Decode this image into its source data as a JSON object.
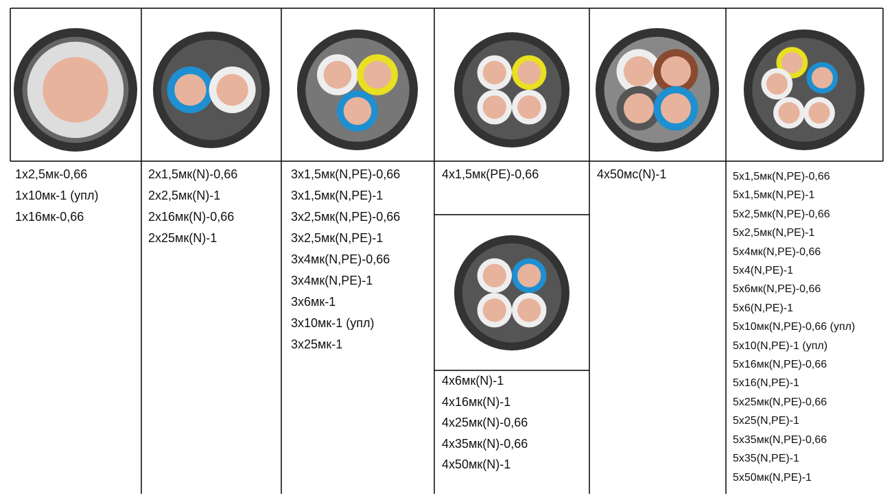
{
  "columns": [
    {
      "lines": [
        "1х2,5мк-0,66",
        "1х10мк-1 (упл)",
        "1х16мк-0,66"
      ]
    },
    {
      "lines": [
        "2х1,5мк(N)-0,66",
        "2х2,5мк(N)-1",
        "2х16мк(N)-0,66",
        "2х25мк(N)-1"
      ]
    },
    {
      "lines": [
        "3х1,5мк(N,PE)-0,66",
        "3х1,5мк(N,PE)-1",
        "3х2,5мк(N,PE)-0,66",
        "3х2,5мк(N,PE)-1",
        "3х4мк(N,PE)-0,66",
        "3х4мк(N,PE)-1",
        "3х6мк-1",
        "3х10мк-1 (упл)",
        "3х25мк-1"
      ]
    },
    {
      "lines": [
        "4х1,5мк(PE)-0,66"
      ],
      "lines_lower": [
        "4х6мк(N)-1",
        "4х16мк(N)-1",
        "4х25мк(N)-0,66",
        "4х35мк(N)-0,66",
        "4х50мк(N)-1"
      ]
    },
    {
      "lines": [
        "4х50мс(N)-1"
      ]
    },
    {
      "lines": [
        "5х1,5мк(N,PE)-0,66",
        "5х1,5мк(N,PE)-1",
        "5х2,5мк(N,PE)-0,66",
        "5х2,5мк(N,PE)-1",
        "5х4мк(N,PE)-0,66",
        "5х4(N,PE)-1",
        "5х6мк(N,PE)-0,66",
        "5х6(N,PE)-1",
        "5х10мк(N,PE)-0,66 (упл)",
        "5х10(N,PE)-1 (упл)",
        "5х16мк(N,PE)-0,66",
        "5х16(N,PE)-1",
        "5х25мк(N,PE)-0,66",
        "5х25(N,PE)-1",
        "5х35мк(N,PE)-0,66",
        "5х35(N,PE)-1",
        "5х50мк(N,PE)-1"
      ]
    }
  ]
}
